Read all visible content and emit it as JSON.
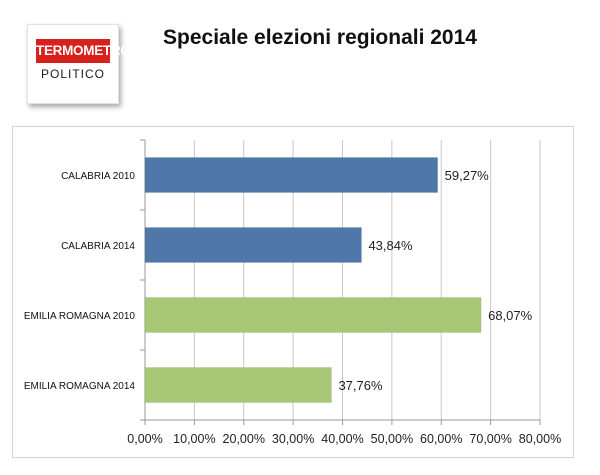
{
  "logo": {
    "line1": "TERMOMETRO",
    "line2": "POLITICO",
    "color": "#d8211c"
  },
  "title": "Speciale elezioni regionali 2014",
  "chart_data": {
    "type": "bar",
    "orientation": "horizontal",
    "categories": [
      "CALABRIA 2010",
      "CALABRIA 2014",
      "EMILIA ROMAGNA 2010",
      "EMILIA ROMAGNA 2014"
    ],
    "values": [
      59.27,
      43.84,
      68.07,
      37.76
    ],
    "value_labels": [
      "59,27%",
      "43,84%",
      "68,07%",
      "37,76%"
    ],
    "bar_colors": [
      "#4f77aa",
      "#4f77aa",
      "#a8c776",
      "#a8c776"
    ],
    "x_ticks": [
      "0,00%",
      "10,00%",
      "20,00%",
      "30,00%",
      "40,00%",
      "50,00%",
      "60,00%",
      "70,00%",
      "80,00%"
    ],
    "xlim": [
      0,
      80
    ],
    "grid": true,
    "title": "",
    "xlabel": "",
    "ylabel": ""
  }
}
